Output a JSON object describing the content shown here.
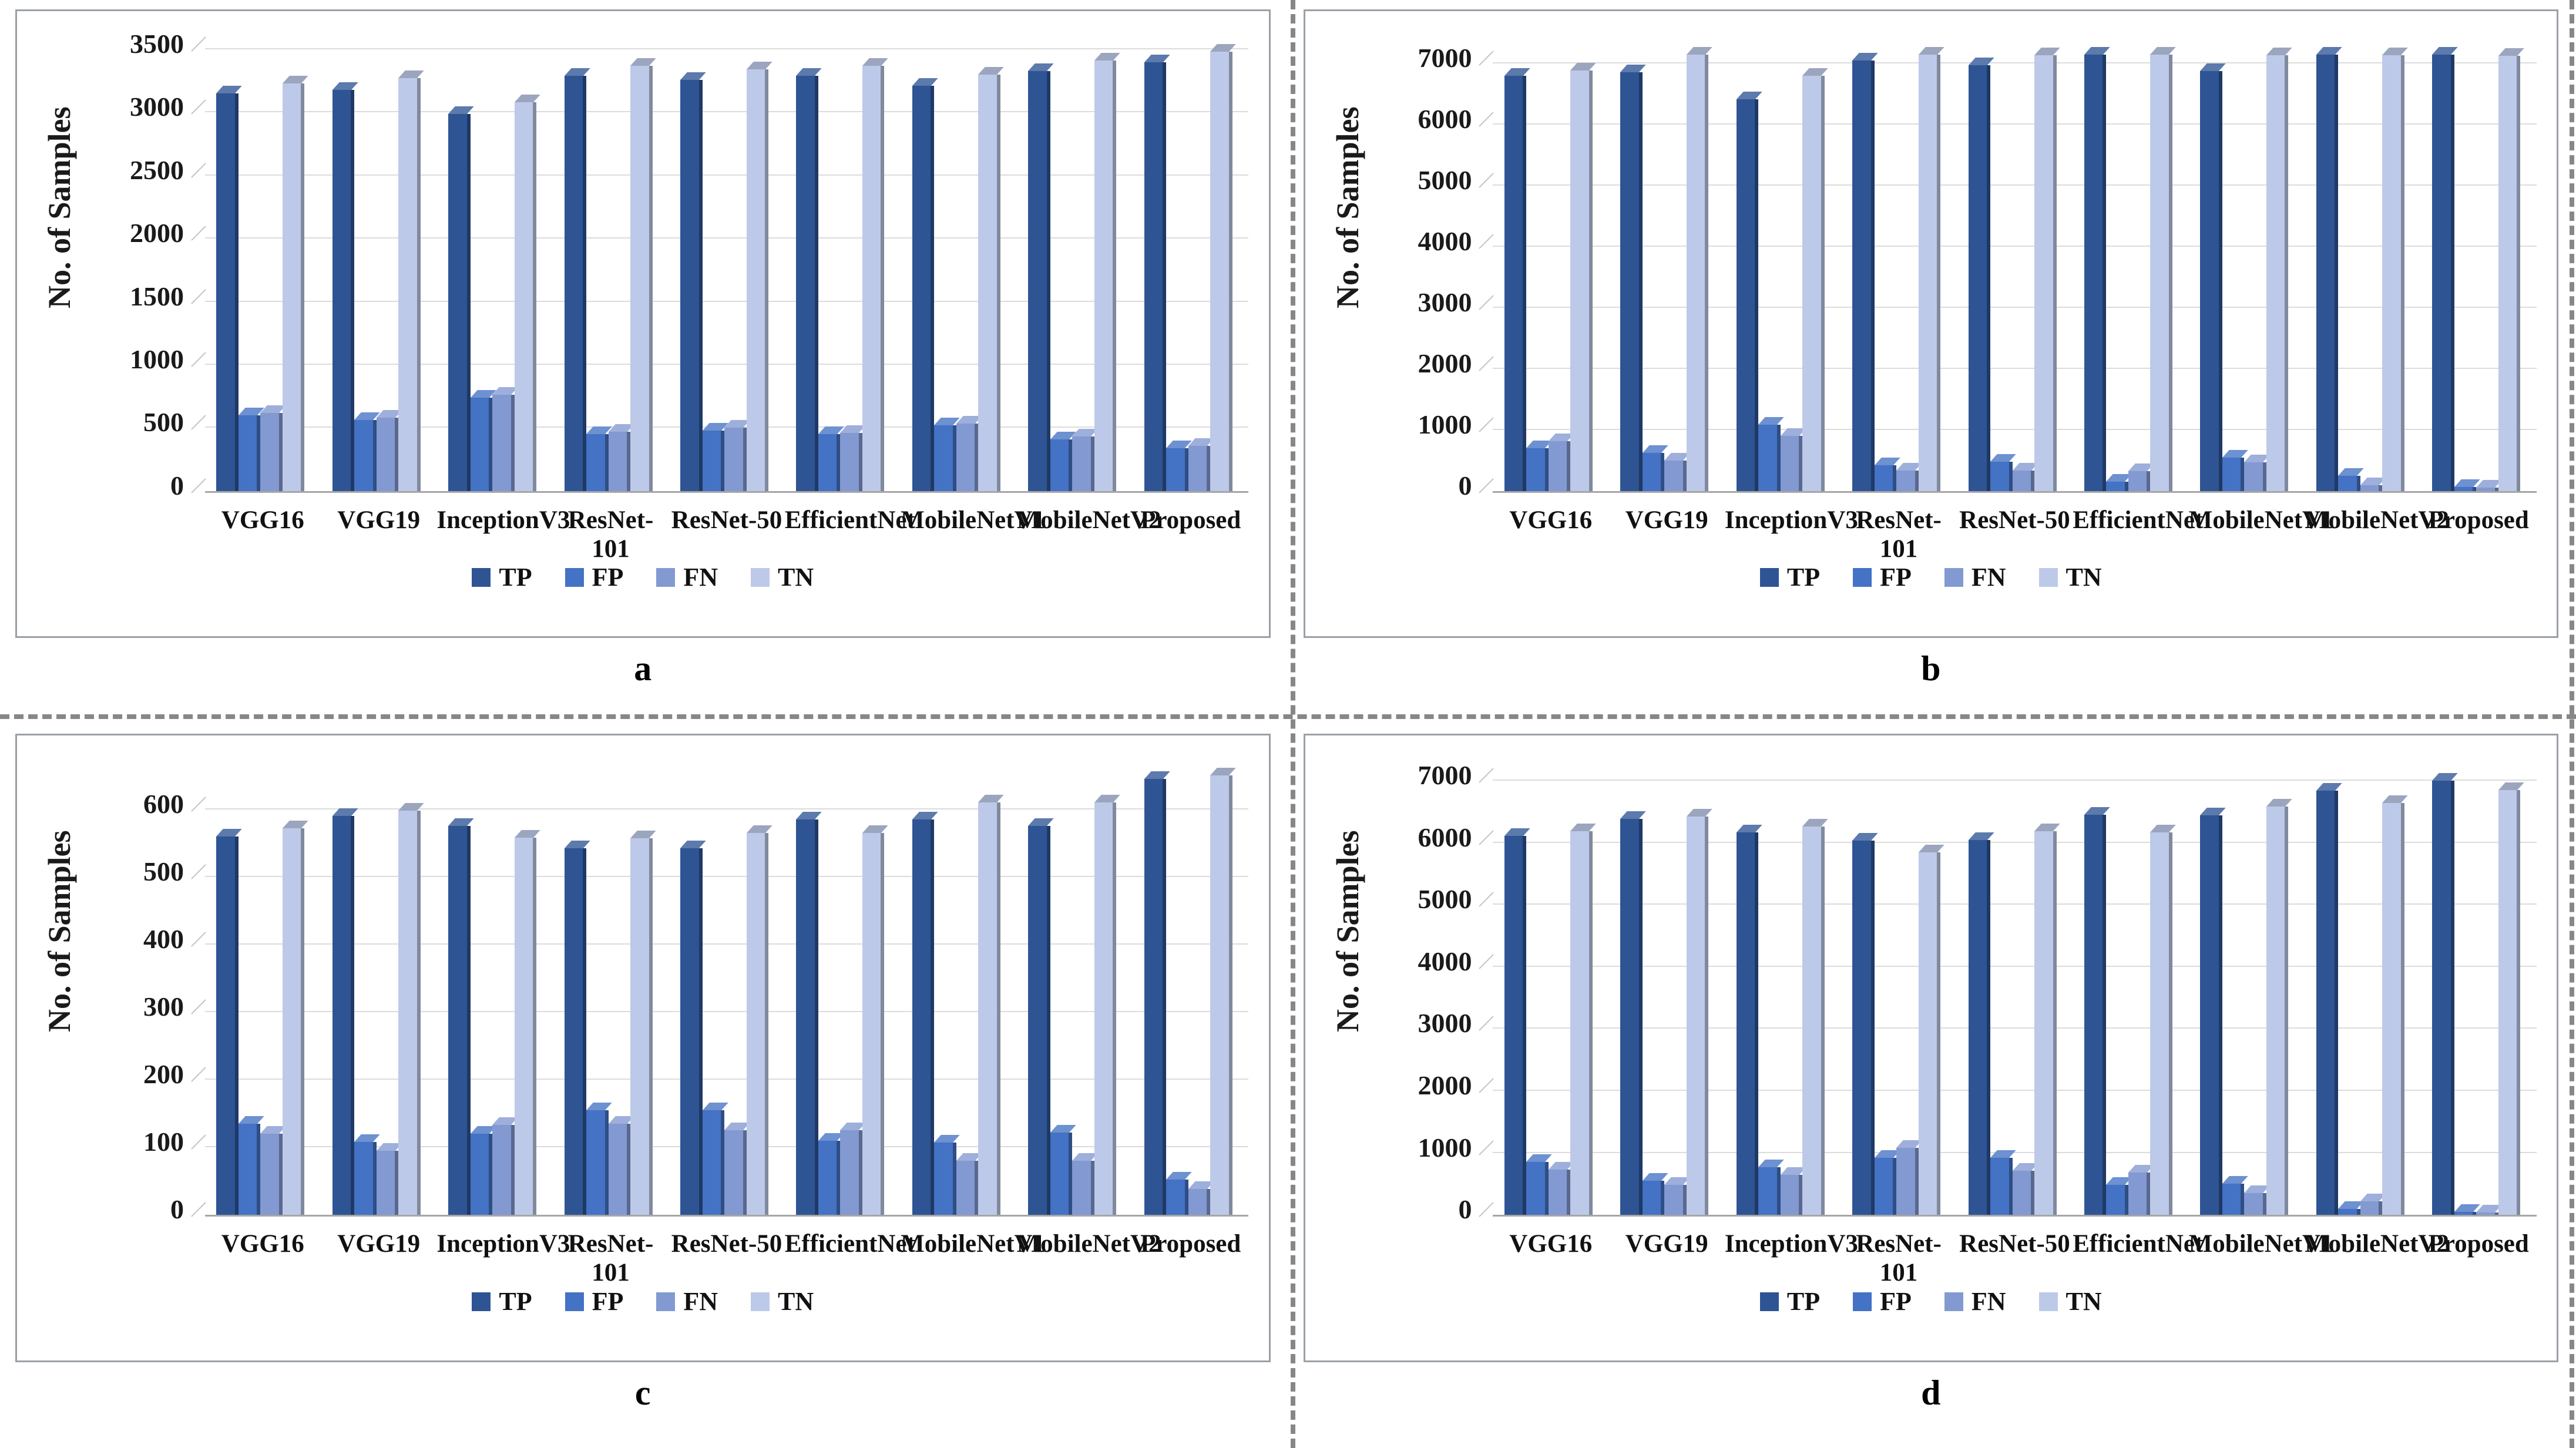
{
  "figure": {
    "ylabel": "No. of Samples",
    "legend": [
      "TP",
      "FP",
      "FN",
      "TN"
    ],
    "series_colors": {
      "TP": "#2E5494",
      "FP": "#4472C4",
      "FN": "#8399D1",
      "TN": "#BDC9E8"
    },
    "panel_letters": [
      "a",
      "b",
      "c",
      "d"
    ]
  },
  "chart_data": [
    {
      "type": "bar",
      "panel": "a",
      "ylabel": "No. of Samples",
      "ylim": [
        0,
        3500
      ],
      "plot_max": 3580,
      "yticks": [
        0,
        500,
        1000,
        1500,
        2000,
        2500,
        3000,
        3500
      ],
      "grid": true,
      "legend_position": "bottom",
      "categories": [
        "VGG16",
        "VGG19",
        "InceptionV3",
        "ResNet-101",
        "ResNet-50",
        "EfficientNet",
        "MobileNetV1",
        "MobileNetV2",
        "Proposed"
      ],
      "series": [
        {
          "name": "TP",
          "values": [
            3150,
            3180,
            2990,
            3290,
            3260,
            3290,
            3210,
            3330,
            3400
          ]
        },
        {
          "name": "FP",
          "values": [
            600,
            560,
            740,
            450,
            480,
            450,
            520,
            410,
            340
          ]
        },
        {
          "name": "FN",
          "values": [
            620,
            580,
            760,
            470,
            500,
            460,
            535,
            430,
            355
          ]
        },
        {
          "name": "TN",
          "values": [
            3230,
            3270,
            3080,
            3370,
            3340,
            3370,
            3300,
            3410,
            3480
          ]
        }
      ]
    },
    {
      "type": "bar",
      "panel": "b",
      "ylabel": "No. of Samples",
      "ylim": [
        0,
        7000
      ],
      "plot_max": 7400,
      "yticks": [
        0,
        1000,
        2000,
        3000,
        4000,
        5000,
        6000,
        7000
      ],
      "grid": true,
      "legend_position": "bottom",
      "categories": [
        "VGG16",
        "VGG19",
        "InceptionV3",
        "ResNet-101",
        "ResNet-50",
        "EfficientNet",
        "MobileNetV1",
        "MobileNetV2",
        "Proposed"
      ],
      "series": [
        {
          "name": "TP",
          "values": [
            6800,
            6860,
            6420,
            7050,
            6980,
            7150,
            6880,
            7150,
            7150
          ]
        },
        {
          "name": "FP",
          "values": [
            700,
            620,
            1080,
            420,
            480,
            150,
            550,
            250,
            60
          ]
        },
        {
          "name": "FN",
          "values": [
            810,
            500,
            900,
            330,
            330,
            320,
            470,
            90,
            50
          ]
        },
        {
          "name": "TN",
          "values": [
            6890,
            7150,
            6800,
            7150,
            7140,
            7150,
            7140,
            7140,
            7130
          ]
        }
      ]
    },
    {
      "type": "bar",
      "panel": "c",
      "ylabel": "No. of Samples",
      "ylim": [
        0,
        600
      ],
      "plot_max": 668,
      "yticks": [
        0,
        100,
        200,
        300,
        400,
        500,
        600
      ],
      "grid": true,
      "legend_position": "bottom",
      "categories": [
        "VGG16",
        "VGG19",
        "InceptionV3",
        "ResNet-101",
        "ResNet-50",
        "EfficientNet",
        "MobileNetV1",
        "MobileNetV2",
        "Proposed"
      ],
      "series": [
        {
          "name": "TP",
          "values": [
            560,
            590,
            575,
            542,
            542,
            585,
            585,
            575,
            645
          ]
        },
        {
          "name": "FP",
          "values": [
            135,
            108,
            120,
            155,
            155,
            110,
            107,
            122,
            52
          ]
        },
        {
          "name": "FN",
          "values": [
            120,
            95,
            133,
            135,
            125,
            125,
            80,
            80,
            38
          ]
        },
        {
          "name": "TN",
          "values": [
            572,
            598,
            558,
            557,
            565,
            565,
            610,
            610,
            650
          ]
        }
      ]
    },
    {
      "type": "bar",
      "panel": "d",
      "ylabel": "No. of Samples",
      "ylim": [
        0,
        7000
      ],
      "plot_max": 7280,
      "yticks": [
        0,
        1000,
        2000,
        3000,
        4000,
        5000,
        6000,
        7000
      ],
      "grid": true,
      "legend_position": "bottom",
      "categories": [
        "VGG16",
        "VGG19",
        "InceptionV3",
        "ResNet-101",
        "ResNet-50",
        "EfficientNet",
        "MobileNetV1",
        "MobileNetV2",
        "Proposed"
      ],
      "series": [
        {
          "name": "TP",
          "values": [
            6110,
            6380,
            6170,
            6030,
            6040,
            6450,
            6440,
            6840,
            7000
          ]
        },
        {
          "name": "FP",
          "values": [
            850,
            550,
            770,
            920,
            920,
            480,
            500,
            100,
            50
          ]
        },
        {
          "name": "FN",
          "values": [
            730,
            480,
            645,
            1080,
            710,
            680,
            350,
            220,
            40
          ]
        },
        {
          "name": "TN",
          "values": [
            6190,
            6420,
            6260,
            5840,
            6190,
            6170,
            6580,
            6640,
            6850
          ]
        }
      ]
    }
  ]
}
